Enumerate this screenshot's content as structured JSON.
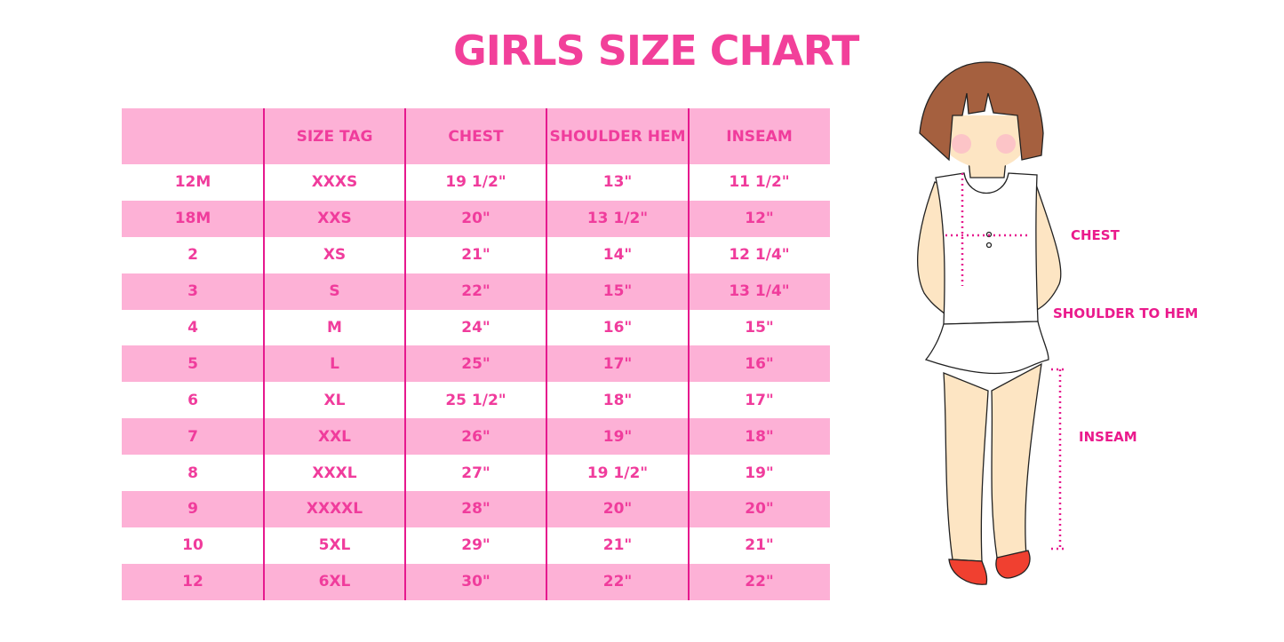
{
  "title": "GIRLS SIZE CHART",
  "table": {
    "headers": [
      "",
      "SIZE TAG",
      "CHEST",
      "SHOULDER HEM",
      "INSEAM"
    ],
    "rows": [
      [
        "12M",
        "XXXS",
        "19 1/2\"",
        "13\"",
        "11 1/2\""
      ],
      [
        "18M",
        "XXS",
        "20\"",
        "13 1/2\"",
        "12\""
      ],
      [
        "2",
        "XS",
        "21\"",
        "14\"",
        "12 1/4\""
      ],
      [
        "3",
        "S",
        "22\"",
        "15\"",
        "13 1/4\""
      ],
      [
        "4",
        "M",
        "24\"",
        "16\"",
        "15\""
      ],
      [
        "5",
        "L",
        "25\"",
        "17\"",
        "16\""
      ],
      [
        "6",
        "XL",
        "25 1/2\"",
        "18\"",
        "17\""
      ],
      [
        "7",
        "XXL",
        "26\"",
        "19\"",
        "18\""
      ],
      [
        "8",
        "XXXL",
        "27\"",
        "19 1/2\"",
        "19\""
      ],
      [
        "9",
        "XXXXL",
        "28\"",
        "20\"",
        "20\""
      ],
      [
        "10",
        "5XL",
        "29\"",
        "21\"",
        "21\""
      ],
      [
        "12",
        "6XL",
        "30\"",
        "22\"",
        "22\""
      ]
    ]
  },
  "figure": {
    "labels": {
      "chest": "CHEST",
      "shoulder": "SHOULDER TO HEM",
      "inseam": "INSEAM"
    }
  },
  "colors": {
    "accent": "#f2409a",
    "row_pink": "#fdb1d6",
    "divider": "#e6198e",
    "hair": "#a5603f",
    "skin": "#fde5c3",
    "shoes": "#f04030"
  }
}
